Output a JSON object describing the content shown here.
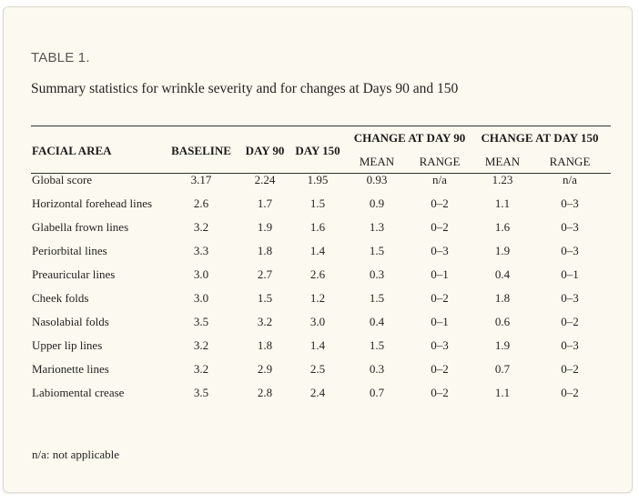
{
  "table_label": "TABLE 1.",
  "caption": "Summary statistics for wrinkle severity and for changes at Days 90 and 150",
  "headers": {
    "facial_area": "FACIAL AREA",
    "baseline": "BASELINE",
    "day90": "DAY 90",
    "day150": "DAY 150",
    "change90": "CHANGE AT DAY 90",
    "change150": "CHANGE AT DAY 150",
    "mean90": "MEAN",
    "range90": "RANGE",
    "mean150": "MEAN",
    "range150": "RANGE"
  },
  "rows": [
    {
      "area": "Global score",
      "baseline": "3.17",
      "day90": "2.24",
      "day150": "1.95",
      "mean90": "0.93",
      "range90": "n/a",
      "mean150": "1.23",
      "range150": "n/a"
    },
    {
      "area": "Horizontal forehead lines",
      "baseline": "2.6",
      "day90": "1.7",
      "day150": "1.5",
      "mean90": "0.9",
      "range90": "0–2",
      "mean150": "1.1",
      "range150": "0–3"
    },
    {
      "area": "Glabella frown lines",
      "baseline": "3.2",
      "day90": "1.9",
      "day150": "1.6",
      "mean90": "1.3",
      "range90": "0–2",
      "mean150": "1.6",
      "range150": "0–3"
    },
    {
      "area": "Periorbital lines",
      "baseline": "3.3",
      "day90": "1.8",
      "day150": "1.4",
      "mean90": "1.5",
      "range90": "0–3",
      "mean150": "1.9",
      "range150": "0–3"
    },
    {
      "area": "Preauricular lines",
      "baseline": "3.0",
      "day90": "2.7",
      "day150": "2.6",
      "mean90": "0.3",
      "range90": "0–1",
      "mean150": "0.4",
      "range150": "0–1"
    },
    {
      "area": "Cheek folds",
      "baseline": "3.0",
      "day90": "1.5",
      "day150": "1.2",
      "mean90": "1.5",
      "range90": "0–2",
      "mean150": "1.8",
      "range150": "0–3"
    },
    {
      "area": "Nasolabial folds",
      "baseline": "3.5",
      "day90": "3.2",
      "day150": "3.0",
      "mean90": "0.4",
      "range90": "0–1",
      "mean150": "0.6",
      "range150": "0–2"
    },
    {
      "area": "Upper lip lines",
      "baseline": "3.2",
      "day90": "1.8",
      "day150": "1.4",
      "mean90": "1.5",
      "range90": "0–3",
      "mean150": "1.9",
      "range150": "0–3"
    },
    {
      "area": "Marionette lines",
      "baseline": "3.2",
      "day90": "2.9",
      "day150": "2.5",
      "mean90": "0.3",
      "range90": "0–2",
      "mean150": "0.7",
      "range150": "0–2"
    },
    {
      "area": "Labiomental crease",
      "baseline": "3.5",
      "day90": "2.8",
      "day150": "2.4",
      "mean90": "0.7",
      "range90": "0–2",
      "mean150": "1.1",
      "range150": "0–2"
    }
  ],
  "footnote": "n/a: not applicable",
  "colors": {
    "card_background": "#fcfaf0",
    "card_border": "#dcdad0",
    "rule": "#333333",
    "text": "#222222"
  }
}
